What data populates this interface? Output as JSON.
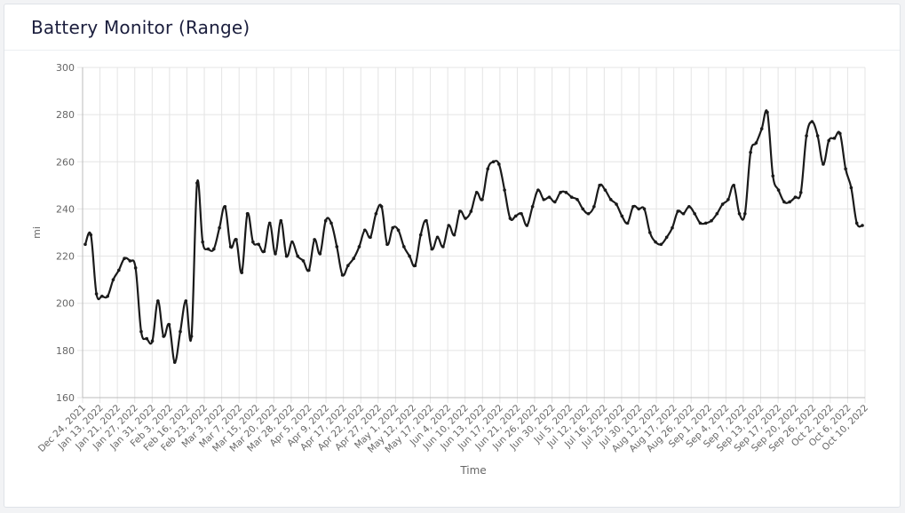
{
  "card": {
    "title": "Battery Monitor (Range)"
  },
  "colors": {
    "line": "#1a1a1a",
    "grid": "#e4e4e4",
    "axis_text": "#666666"
  },
  "chart_data": {
    "type": "line",
    "title": "Battery Monitor (Range)",
    "xlabel": "Time",
    "ylabel": "mi",
    "ylim": [
      160,
      300
    ],
    "yticks": [
      160,
      180,
      200,
      220,
      240,
      260,
      280,
      300
    ],
    "grid": true,
    "x_tick_labels": [
      "Dec 24, 2021",
      "Jan 13, 2022",
      "Jan 21, 2022",
      "Jan 27, 2022",
      "Jan 31, 2022",
      "Feb 3, 2022",
      "Feb 16, 2022",
      "Feb 23, 2022",
      "Mar 3, 2022",
      "Mar 7, 2022",
      "Mar 15, 2022",
      "Mar 20, 2022",
      "Mar 28, 2022",
      "Apr 5, 2022",
      "Apr 9, 2022",
      "Apr 17, 2022",
      "Apr 22, 2022",
      "Apr 27, 2022",
      "May 1, 2022",
      "May 12, 2022",
      "May 17, 2022",
      "Jun 4, 2022",
      "Jun 10, 2022",
      "Jun 13, 2022",
      "Jun 17, 2022",
      "Jun 21, 2022",
      "Jun 26, 2022",
      "Jun 30, 2022",
      "Jul 5, 2022",
      "Jul 12, 2022",
      "Jul 16, 2022",
      "Jul 25, 2022",
      "Jul 30, 2022",
      "Aug 12, 2022",
      "Aug 17, 2022",
      "Aug 26, 2022",
      "Sep 1, 2022",
      "Sep 4, 2022",
      "Sep 7, 2022",
      "Sep 13, 2022",
      "Sep 17, 2022",
      "Sep 20, 2022",
      "Sep 26, 2022",
      "Oct 2, 2022",
      "Oct 6, 2022",
      "Oct 10, 2022"
    ],
    "series": [
      {
        "values": [
          225,
          229,
          204,
          203,
          203,
          210,
          214,
          219,
          218,
          215,
          188,
          185,
          184,
          201,
          186,
          191,
          175,
          188,
          201,
          186,
          251,
          226,
          223,
          223,
          232,
          241,
          224,
          227,
          213,
          238,
          226,
          225,
          222,
          234,
          221,
          235,
          220,
          226,
          220,
          218,
          214,
          227,
          221,
          235,
          234,
          224,
          212,
          216,
          219,
          224,
          231,
          228,
          238,
          241,
          225,
          232,
          231,
          224,
          220,
          216,
          229,
          235,
          223,
          228,
          224,
          233,
          229,
          239,
          236,
          239,
          247,
          244,
          257,
          260,
          259,
          248,
          236,
          237,
          238,
          233,
          241,
          248,
          244,
          245,
          243,
          247,
          247,
          245,
          244,
          240,
          238,
          241,
          250,
          248,
          244,
          242,
          237,
          234,
          241,
          240,
          240,
          230,
          226,
          225,
          228,
          232,
          239,
          238,
          241,
          238,
          234,
          234,
          235,
          238,
          242,
          244,
          250,
          238,
          238,
          264,
          268,
          274,
          281,
          254,
          248,
          243,
          243,
          245,
          247,
          271,
          277,
          271,
          259,
          269,
          270,
          272,
          257,
          249,
          234,
          233
        ]
      }
    ]
  }
}
